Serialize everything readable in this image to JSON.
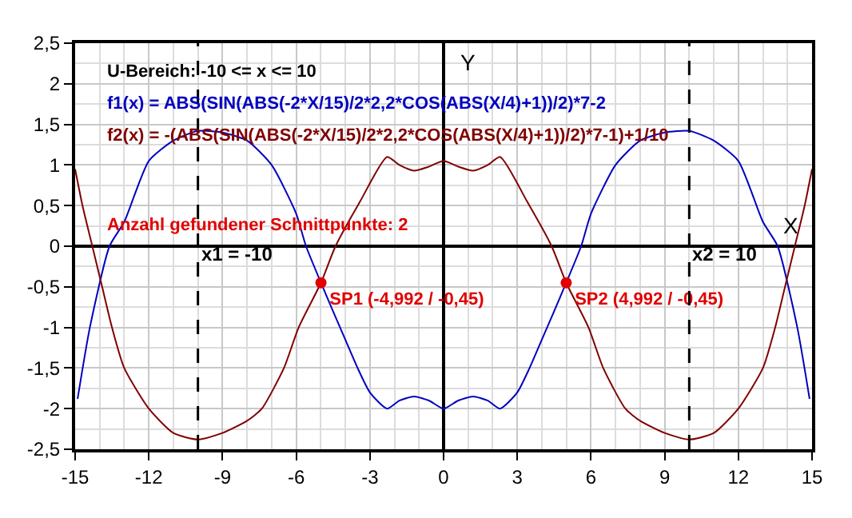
{
  "chart_data": {
    "type": "line",
    "xlabel": "X",
    "ylabel": "Y",
    "annotations": [
      "U-Bereich: -10 <= x <= 10",
      "f1(x) = ABS(SIN(ABS(-2*X/15)/2*2,2*COS(ABS(X/4)+1))/2)*7-2",
      "f2(x) = -(ABS(SIN(ABS(-2*X/15)/2*2,2*COS(ABS(X/4)+1))/2)*7-1)+1/10",
      "Anzahl gefundener Schnittpunkte: 2"
    ],
    "series": [
      {
        "name": null,
        "color": "#0000c0",
        "x": [
          -14.9,
          -14.4,
          -13.6,
          -13,
          -12,
          -11,
          -10,
          -9,
          -8,
          -7,
          -6,
          -5.6,
          -4.992,
          -4.5,
          -4,
          -3.5,
          -3,
          -2.3,
          -1.8,
          -1.2,
          -0.6,
          0,
          0.6,
          1.2,
          1.8,
          2.3,
          3,
          3.5,
          4,
          4.5,
          4.992,
          5.6,
          6,
          7,
          8,
          9,
          10,
          11,
          12,
          13,
          13.6,
          14.4,
          14.9
        ],
        "values": [
          -1.88,
          -1.0,
          0,
          0.3,
          1.05,
          1.3,
          1.42,
          1.4,
          1.3,
          1.0,
          0.4,
          0,
          -0.45,
          -0.8,
          -1.15,
          -1.5,
          -1.8,
          -2.0,
          -1.9,
          -1.85,
          -1.9,
          -2.0,
          -1.9,
          -1.85,
          -1.9,
          -2.0,
          -1.8,
          -1.5,
          -1.15,
          -0.8,
          -0.45,
          0,
          0.4,
          1.0,
          1.3,
          1.4,
          1.42,
          1.3,
          1.05,
          0.3,
          0,
          -1.0,
          -1.88
        ]
      },
      {
        "name": null,
        "color": "#800000",
        "x": [
          -15,
          -14.7,
          -14.3,
          -13.9,
          -13.5,
          -13,
          -12,
          -11,
          -10,
          -9,
          -8,
          -7.4,
          -6.5,
          -5.9,
          -4.992,
          -4.4,
          -3.4,
          -2.3,
          -1.8,
          -1.2,
          -0.6,
          0,
          0.6,
          1.2,
          1.8,
          2.3,
          3.4,
          4.4,
          4.992,
          5.9,
          6.5,
          7.4,
          8,
          9,
          10,
          11,
          12,
          13,
          13.5,
          13.9,
          14.3,
          14.7,
          15
        ],
        "values": [
          0.95,
          0.5,
          0,
          -0.5,
          -1.0,
          -1.5,
          -2.0,
          -2.3,
          -2.38,
          -2.3,
          -2.15,
          -2.0,
          -1.5,
          -1.0,
          -0.45,
          0,
          0.55,
          1.1,
          1.0,
          0.93,
          0.98,
          1.05,
          0.98,
          0.93,
          1.0,
          1.1,
          0.55,
          0,
          -0.45,
          -1.0,
          -1.5,
          -2.0,
          -2.15,
          -2.3,
          -2.38,
          -2.3,
          -2.0,
          -1.5,
          -1.0,
          -0.5,
          0,
          0.5,
          0.95
        ]
      },
      {
        "type": "scatter",
        "name": null,
        "color": "#e00000",
        "marker": "circle",
        "x": [
          -4.992,
          4.992
        ],
        "values": [
          -0.45,
          -0.45
        ],
        "value_labels": [
          "SP1 (-4,992 / -0,45)",
          "SP2 (4,992 / -0,45)"
        ]
      }
    ],
    "marker": "none",
    "line_style": "solid",
    "ref_lines": [
      {
        "axis": "x",
        "value": -10,
        "label": "x1 = -10",
        "color": "#000000",
        "line_style": "dashed"
      },
      {
        "axis": "x",
        "value": 10,
        "label": "x2 = 10",
        "color": "#000000",
        "line_style": "dashed"
      }
    ],
    "xlim": [
      -15,
      15
    ],
    "xticks": [
      -15,
      -12,
      -9,
      -6,
      -3,
      0,
      3,
      6,
      9,
      12,
      15
    ],
    "ylim": [
      -2.5,
      2.5
    ],
    "yticks": [
      {
        "value": -2.5,
        "label": "-2,5"
      },
      -2,
      {
        "value": -1.5,
        "label": "-1,5"
      },
      -1,
      {
        "value": -0.5,
        "label": "-0,5"
      },
      0,
      {
        "value": 0.5,
        "label": "0,5"
      },
      1,
      {
        "value": 1.5,
        "label": "1,5"
      },
      2,
      {
        "value": 2.5,
        "label": "2,5"
      }
    ],
    "grid": true
  }
}
